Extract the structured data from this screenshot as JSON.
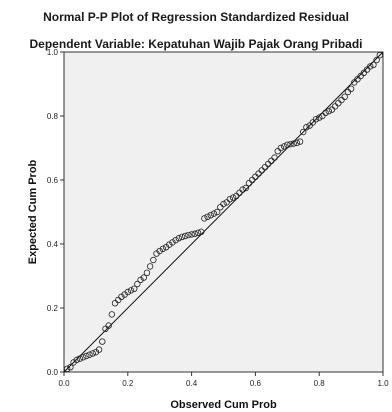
{
  "chart_data": {
    "type": "scatter",
    "title": "Normal P-P Plot of Regression Standardized Residual",
    "subtitle": "Dependent Variable: Kepatuhan Wajib Pajak Orang Pribadi",
    "xlabel": "Observed Cum Prob",
    "ylabel": "Expected Cum Prob",
    "xlim": [
      0.0,
      1.0
    ],
    "ylim": [
      0.0,
      1.0
    ],
    "x_ticks": [
      "0.0",
      "0.2",
      "0.4",
      "0.6",
      "0.8",
      "1.0"
    ],
    "y_ticks": [
      "0.0",
      "0.2",
      "0.4",
      "0.6",
      "0.8",
      "1.0"
    ],
    "grid": false,
    "reference_line": [
      [
        0.0,
        0.0
      ],
      [
        1.0,
        1.0
      ]
    ],
    "background_color": "#f0f0f0",
    "marker": "circle-open",
    "points": [
      [
        0.01,
        0.01
      ],
      [
        0.02,
        0.015
      ],
      [
        0.03,
        0.03
      ],
      [
        0.04,
        0.038
      ],
      [
        0.05,
        0.042
      ],
      [
        0.06,
        0.046
      ],
      [
        0.07,
        0.05
      ],
      [
        0.08,
        0.054
      ],
      [
        0.09,
        0.058
      ],
      [
        0.1,
        0.062
      ],
      [
        0.11,
        0.07
      ],
      [
        0.12,
        0.095
      ],
      [
        0.13,
        0.135
      ],
      [
        0.14,
        0.145
      ],
      [
        0.15,
        0.18
      ],
      [
        0.16,
        0.215
      ],
      [
        0.17,
        0.225
      ],
      [
        0.18,
        0.235
      ],
      [
        0.19,
        0.242
      ],
      [
        0.2,
        0.25
      ],
      [
        0.21,
        0.255
      ],
      [
        0.22,
        0.26
      ],
      [
        0.23,
        0.275
      ],
      [
        0.24,
        0.288
      ],
      [
        0.25,
        0.295
      ],
      [
        0.26,
        0.31
      ],
      [
        0.27,
        0.33
      ],
      [
        0.28,
        0.35
      ],
      [
        0.29,
        0.37
      ],
      [
        0.3,
        0.378
      ],
      [
        0.31,
        0.385
      ],
      [
        0.32,
        0.39
      ],
      [
        0.33,
        0.398
      ],
      [
        0.34,
        0.405
      ],
      [
        0.35,
        0.412
      ],
      [
        0.36,
        0.418
      ],
      [
        0.37,
        0.422
      ],
      [
        0.38,
        0.425
      ],
      [
        0.39,
        0.428
      ],
      [
        0.4,
        0.43
      ],
      [
        0.41,
        0.432
      ],
      [
        0.42,
        0.435
      ],
      [
        0.43,
        0.438
      ],
      [
        0.44,
        0.48
      ],
      [
        0.45,
        0.485
      ],
      [
        0.46,
        0.49
      ],
      [
        0.47,
        0.495
      ],
      [
        0.48,
        0.5
      ],
      [
        0.49,
        0.515
      ],
      [
        0.5,
        0.525
      ],
      [
        0.51,
        0.53
      ],
      [
        0.52,
        0.54
      ],
      [
        0.53,
        0.545
      ],
      [
        0.54,
        0.55
      ],
      [
        0.55,
        0.56
      ],
      [
        0.56,
        0.57
      ],
      [
        0.57,
        0.575
      ],
      [
        0.58,
        0.59
      ],
      [
        0.59,
        0.6
      ],
      [
        0.6,
        0.61
      ],
      [
        0.61,
        0.62
      ],
      [
        0.62,
        0.63
      ],
      [
        0.63,
        0.64
      ],
      [
        0.64,
        0.65
      ],
      [
        0.65,
        0.66
      ],
      [
        0.66,
        0.67
      ],
      [
        0.67,
        0.69
      ],
      [
        0.68,
        0.7
      ],
      [
        0.69,
        0.705
      ],
      [
        0.7,
        0.71
      ],
      [
        0.71,
        0.712
      ],
      [
        0.72,
        0.714
      ],
      [
        0.73,
        0.716
      ],
      [
        0.74,
        0.72
      ],
      [
        0.75,
        0.75
      ],
      [
        0.76,
        0.765
      ],
      [
        0.77,
        0.77
      ],
      [
        0.78,
        0.78
      ],
      [
        0.79,
        0.79
      ],
      [
        0.8,
        0.795
      ],
      [
        0.81,
        0.8
      ],
      [
        0.82,
        0.81
      ],
      [
        0.83,
        0.815
      ],
      [
        0.84,
        0.82
      ],
      [
        0.85,
        0.83
      ],
      [
        0.86,
        0.84
      ],
      [
        0.87,
        0.85
      ],
      [
        0.88,
        0.86
      ],
      [
        0.89,
        0.875
      ],
      [
        0.9,
        0.885
      ],
      [
        0.91,
        0.905
      ],
      [
        0.92,
        0.915
      ],
      [
        0.93,
        0.925
      ],
      [
        0.94,
        0.935
      ],
      [
        0.95,
        0.945
      ],
      [
        0.96,
        0.955
      ],
      [
        0.97,
        0.96
      ],
      [
        0.98,
        0.975
      ],
      [
        0.99,
        0.99
      ]
    ]
  }
}
